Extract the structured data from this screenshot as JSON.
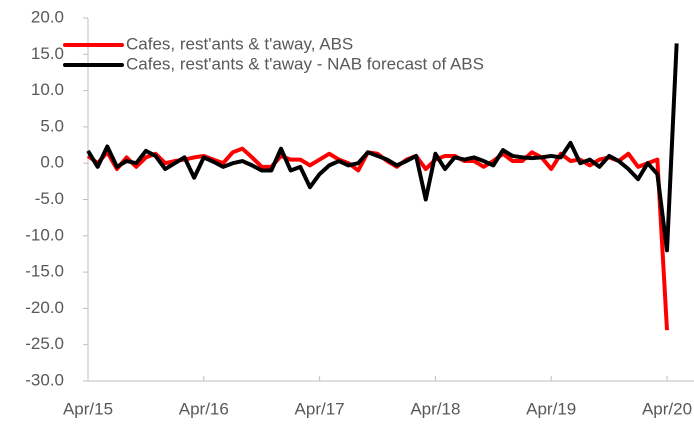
{
  "chart_data": {
    "type": "line",
    "categories": [
      "Apr/15",
      null,
      null,
      null,
      null,
      null,
      null,
      null,
      null,
      null,
      null,
      null,
      "Apr/16",
      null,
      null,
      null,
      null,
      null,
      null,
      null,
      null,
      null,
      null,
      null,
      "Apr/17",
      null,
      null,
      null,
      null,
      null,
      null,
      null,
      null,
      null,
      null,
      null,
      "Apr/18",
      null,
      null,
      null,
      null,
      null,
      null,
      null,
      null,
      null,
      null,
      null,
      "Apr/19",
      null,
      null,
      null,
      null,
      null,
      null,
      null,
      null,
      null,
      null,
      null,
      "Apr/20",
      null
    ],
    "series": [
      {
        "name": "Cafes, rest'ants & t'away, ABS",
        "color": "#ff0000",
        "values": [
          1.0,
          0.0,
          1.5,
          -0.8,
          0.8,
          -0.5,
          0.8,
          1.3,
          0.0,
          0.3,
          0.5,
          0.8,
          1.0,
          0.5,
          0.0,
          1.5,
          2.0,
          0.8,
          -0.5,
          -0.5,
          1.0,
          0.5,
          0.5,
          -0.3,
          0.5,
          1.3,
          0.5,
          0.0,
          -1.0,
          1.5,
          1.3,
          0.3,
          -0.5,
          0.5,
          1.0,
          -0.8,
          0.5,
          1.0,
          1.0,
          0.3,
          0.3,
          -0.5,
          0.3,
          1.3,
          0.3,
          0.3,
          1.5,
          0.8,
          -0.8,
          1.3,
          0.3,
          0.5,
          -0.3,
          0.5,
          0.8,
          0.3,
          1.3,
          -0.5,
          0.0,
          0.5,
          -23.0,
          null
        ]
      },
      {
        "name": "Cafes, rest'ants & t'away - NAB forecast of ABS",
        "color": "#000000",
        "values": [
          1.7,
          -0.5,
          2.3,
          -0.5,
          0.3,
          0.0,
          1.7,
          1.0,
          -0.8,
          0.0,
          0.8,
          -2.0,
          0.8,
          0.2,
          -0.5,
          0.0,
          0.3,
          -0.3,
          -1.0,
          -1.0,
          2.0,
          -1.0,
          -0.5,
          -3.3,
          -1.5,
          -0.3,
          0.3,
          -0.3,
          0.0,
          1.5,
          1.0,
          0.5,
          -0.3,
          0.3,
          1.0,
          -5.0,
          1.3,
          -0.8,
          0.8,
          0.5,
          0.8,
          0.3,
          -0.3,
          1.8,
          1.0,
          0.8,
          0.7,
          0.8,
          1.0,
          0.8,
          2.8,
          0.0,
          0.5,
          -0.5,
          1.0,
          0.3,
          -0.8,
          -2.2,
          0.0,
          -1.5,
          -12.0,
          16.5
        ]
      }
    ],
    "ylim": [
      -30,
      20
    ],
    "yticks": [
      {
        "value": -30,
        "label": "-30.0"
      },
      {
        "value": -25,
        "label": "-25.0"
      },
      {
        "value": -20,
        "label": "-20.0"
      },
      {
        "value": -15,
        "label": "-15.0"
      },
      {
        "value": -10,
        "label": "-10.0"
      },
      {
        "value": -5,
        "label": "-5.0"
      },
      {
        "value": 0,
        "label": "0.0"
      },
      {
        "value": 5,
        "label": "5.0"
      },
      {
        "value": 10,
        "label": "10.0"
      },
      {
        "value": 15,
        "label": "15.0"
      },
      {
        "value": 20,
        "label": "20.0"
      }
    ],
    "grid": false,
    "legend": "top-left"
  }
}
